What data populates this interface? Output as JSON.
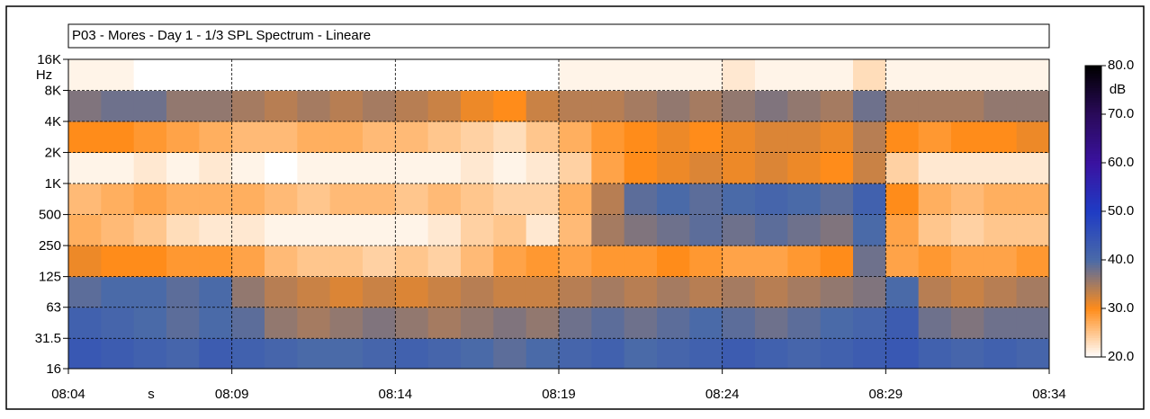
{
  "chart_data": {
    "type": "heatmap",
    "title": "P03 - Mores - Day 1 - 1/3 SPL Spectrum - Lineare",
    "x_label": "s",
    "y_label": "Hz",
    "x": [
      "08:04",
      "08:05",
      "08:06",
      "08:07",
      "08:08",
      "08:09",
      "08:10",
      "08:11",
      "08:12",
      "08:13",
      "08:14",
      "08:15",
      "08:16",
      "08:17",
      "08:18",
      "08:19",
      "08:20",
      "08:21",
      "08:22",
      "08:23",
      "08:24",
      "08:25",
      "08:26",
      "08:27",
      "08:28",
      "08:29",
      "08:30",
      "08:31",
      "08:32",
      "08:33"
    ],
    "xlim": [
      "08:04",
      "08:34"
    ],
    "xticks": [
      "08:04",
      "08:09",
      "08:14",
      "08:19",
      "08:24",
      "08:29",
      "08:34"
    ],
    "y": [
      16,
      31.5,
      63,
      125,
      250,
      500,
      1000,
      2000,
      4000,
      8000,
      16000
    ],
    "ylim": [
      16,
      16000
    ],
    "log_y": true,
    "yticks": [
      16,
      31.5,
      63,
      125,
      250,
      500,
      {
        "value": 1000,
        "label": "1K"
      },
      {
        "value": 2000,
        "label": "2K"
      },
      {
        "value": 4000,
        "label": "4K"
      },
      {
        "value": 8000,
        "label": "8K"
      },
      {
        "value": 16000,
        "label": "16K"
      }
    ],
    "grid": true,
    "values": [
      [
        44,
        43,
        42,
        41,
        43,
        42,
        41,
        40,
        40,
        41,
        42,
        41,
        40,
        39,
        40,
        41,
        42,
        40,
        41,
        42,
        43,
        42,
        41,
        42,
        43,
        44,
        42,
        41,
        42,
        41
      ],
      [
        42,
        41,
        40,
        39,
        40,
        39,
        36,
        35,
        36,
        37,
        36,
        35,
        36,
        37,
        36,
        38,
        39,
        38,
        39,
        40,
        39,
        38,
        39,
        40,
        41,
        43,
        38,
        37,
        38,
        38
      ],
      [
        39,
        40,
        40,
        39,
        40,
        36,
        34,
        33,
        32,
        33,
        32,
        33,
        34,
        33,
        33,
        34,
        35,
        34,
        35,
        34,
        35,
        34,
        35,
        36,
        37,
        40,
        34,
        33,
        34,
        35
      ],
      [
        31,
        30,
        30,
        29,
        29,
        28,
        26,
        25,
        25,
        24,
        25,
        24,
        26,
        28,
        29,
        28,
        29,
        29,
        30,
        29,
        28,
        28,
        29,
        30,
        38,
        28,
        29,
        28,
        28,
        29
      ],
      [
        27,
        26,
        25,
        23,
        22,
        22,
        21,
        21,
        21,
        21,
        21,
        22,
        24,
        25,
        22,
        26,
        35,
        37,
        38,
        39,
        38,
        39,
        38,
        37,
        40,
        28,
        25,
        24,
        25,
        25
      ],
      [
        26,
        27,
        28,
        27,
        27,
        27,
        26,
        25,
        26,
        26,
        25,
        26,
        25,
        24,
        24,
        27,
        34,
        39,
        40,
        39,
        40,
        41,
        40,
        39,
        42,
        30,
        27,
        26,
        27,
        27
      ],
      [
        21,
        21,
        22,
        21,
        22,
        21,
        20,
        21,
        21,
        21,
        21,
        21,
        22,
        21,
        22,
        24,
        28,
        30,
        31,
        32,
        31,
        32,
        31,
        30,
        33,
        24,
        22,
        22,
        22,
        22
      ],
      [
        30,
        30,
        29,
        28,
        27,
        26,
        26,
        27,
        27,
        26,
        26,
        25,
        24,
        23,
        25,
        27,
        29,
        30,
        31,
        30,
        31,
        32,
        32,
        31,
        34,
        30,
        29,
        30,
        30,
        31
      ],
      [
        37,
        38,
        38,
        36,
        36,
        35,
        34,
        35,
        34,
        35,
        34,
        33,
        31,
        30,
        33,
        34,
        34,
        35,
        36,
        35,
        36,
        37,
        36,
        35,
        38,
        35,
        35,
        35,
        36,
        36
      ],
      [
        21,
        21,
        20,
        20,
        20,
        20,
        20,
        20,
        20,
        20,
        20,
        20,
        20,
        20,
        20,
        21,
        21,
        21,
        21,
        21,
        22,
        21,
        21,
        21,
        23,
        21,
        21,
        21,
        21,
        21
      ]
    ],
    "colorbar_label": "dB",
    "zlim": [
      20,
      80
    ],
    "zticks": [
      {
        "value": 20,
        "label": "20.0"
      },
      {
        "value": 30,
        "label": "30.0"
      },
      {
        "value": 40,
        "label": "40.0"
      },
      {
        "value": 50,
        "label": "50.0"
      },
      {
        "value": 60,
        "label": "60.0"
      },
      {
        "value": 70,
        "label": "70.0"
      },
      {
        "value": 80,
        "label": "80.0"
      }
    ],
    "colors": [
      "#ffffff",
      "#ff8c1a",
      "#4a6aa8",
      "#1f3cc4",
      "#3a12a0",
      "#2a0a5a",
      "#000000"
    ]
  }
}
